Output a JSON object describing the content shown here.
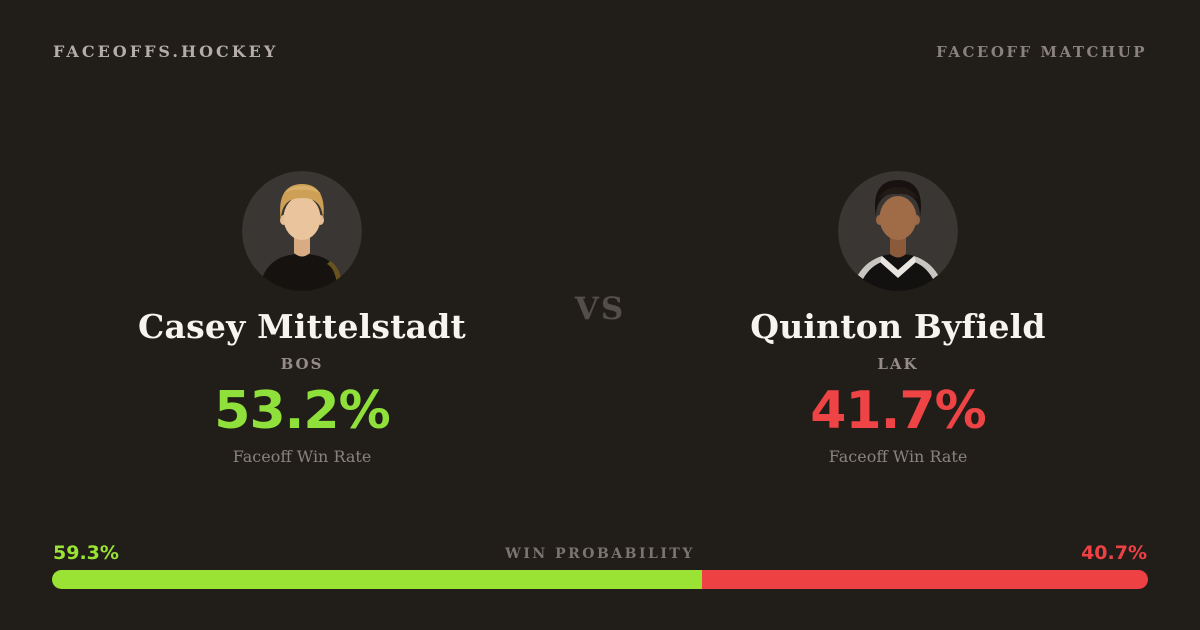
{
  "header": {
    "brand": "FACEOFFS.HOCKEY",
    "label": "FACEOFF MATCHUP"
  },
  "matchup": {
    "vs": "VS",
    "players": [
      {
        "name": "Casey Mittelstadt",
        "team": "BOS",
        "faceoff_win_rate": "53.2%",
        "stat_label": "Faceoff Win Rate",
        "accent": "#8fe03a",
        "avatar_alt": "blond player in black jersey"
      },
      {
        "name": "Quinton Byfield",
        "team": "LAK",
        "faceoff_win_rate": "41.7%",
        "stat_label": "Faceoff Win Rate",
        "accent": "#ee4445",
        "avatar_alt": "dark-haired player in black jersey with white collar"
      }
    ]
  },
  "win_probability": {
    "label": "WIN PROBABILITY",
    "left": {
      "value": "59.3%",
      "percent": 59.3,
      "color": "#9ae234"
    },
    "right": {
      "value": "40.7%",
      "percent": 40.7,
      "color": "#ee4144"
    }
  },
  "chart_data": {
    "type": "bar",
    "variant": "stacked-horizontal-single-row",
    "title": "WIN PROBABILITY",
    "categories": [
      "Casey Mittelstadt (BOS)",
      "Quinton Byfield (LAK)"
    ],
    "values": [
      59.3,
      40.7
    ],
    "unit": "%",
    "colors": [
      "#9ae234",
      "#ee4144"
    ],
    "related_stats": {
      "faceoff_win_rate": {
        "Casey Mittelstadt": 53.2,
        "Quinton Byfield": 41.7
      }
    }
  },
  "colors": {
    "background": "#211d19",
    "text_primary": "#f7f3ef",
    "text_muted": "#8a837d",
    "green": "#8fe03a",
    "red": "#ee4445",
    "avatar_bg": "#3a3633"
  }
}
